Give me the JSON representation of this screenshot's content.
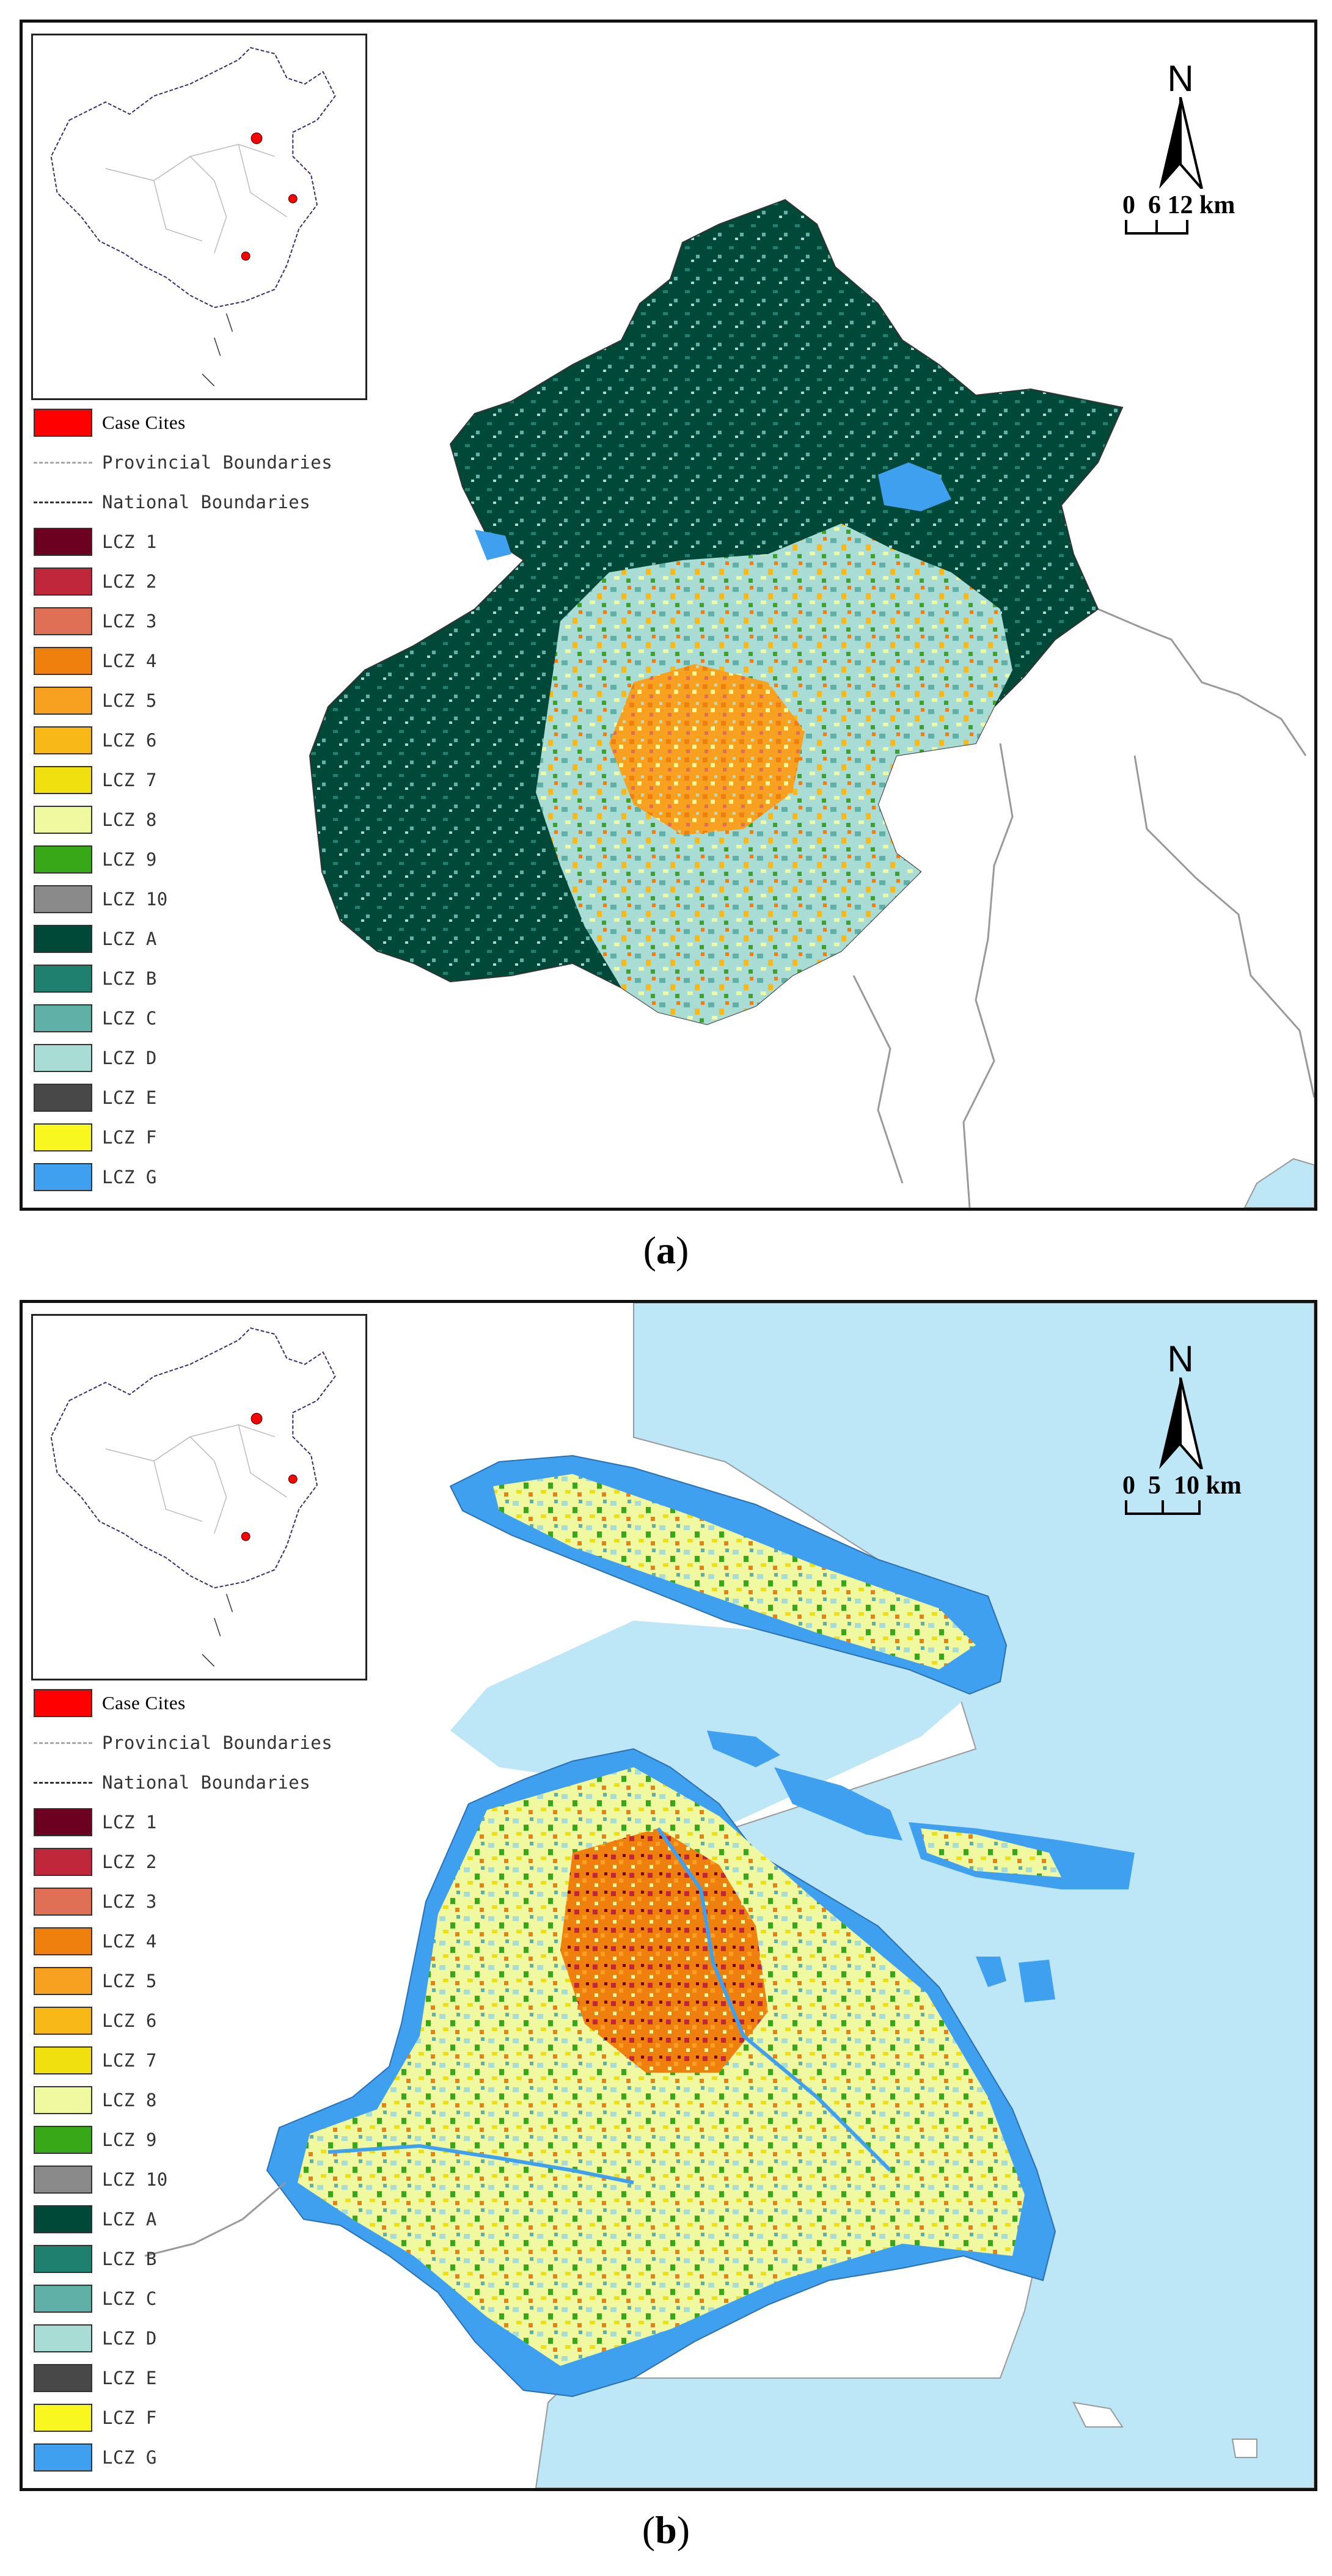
{
  "panels": [
    {
      "id": "a",
      "caption_letter": "a",
      "north_label": "N",
      "scale_ticks": [
        "0",
        "6",
        "12"
      ],
      "scale_unit": "km"
    },
    {
      "id": "b",
      "caption_letter": "b",
      "north_label": "N",
      "scale_ticks": [
        "0",
        "5",
        "10"
      ],
      "scale_unit": "km"
    }
  ],
  "legend": {
    "case_cites": "Case Cites",
    "provincial_boundaries": "Provincial Boundaries",
    "national_boundaries": "National Boundaries",
    "classes": [
      {
        "label": "LCZ 1",
        "color": "#6b0020"
      },
      {
        "label": "LCZ 2",
        "color": "#c0273a"
      },
      {
        "label": "LCZ 3",
        "color": "#e07055"
      },
      {
        "label": "LCZ 4",
        "color": "#f0800e"
      },
      {
        "label": "LCZ 5",
        "color": "#f8a020"
      },
      {
        "label": "LCZ 6",
        "color": "#f8b818"
      },
      {
        "label": "LCZ 7",
        "color": "#f0e010"
      },
      {
        "label": "LCZ 8",
        "color": "#f0f8a0"
      },
      {
        "label": "LCZ 9",
        "color": "#38a818"
      },
      {
        "label": "LCZ 10",
        "color": "#8a8a8a"
      },
      {
        "label": "LCZ A",
        "color": "#004838"
      },
      {
        "label": "LCZ B",
        "color": "#208070"
      },
      {
        "label": "LCZ C",
        "color": "#60b0a8"
      },
      {
        "label": "LCZ D",
        "color": "#a8dcd4"
      },
      {
        "label": "LCZ E",
        "color": "#484848"
      },
      {
        "label": "LCZ F",
        "color": "#f8f820"
      },
      {
        "label": "LCZ G",
        "color": "#40a0f0"
      }
    ]
  },
  "colors": {
    "case_city": "#ff0000",
    "sea": "#bde6f7"
  }
}
